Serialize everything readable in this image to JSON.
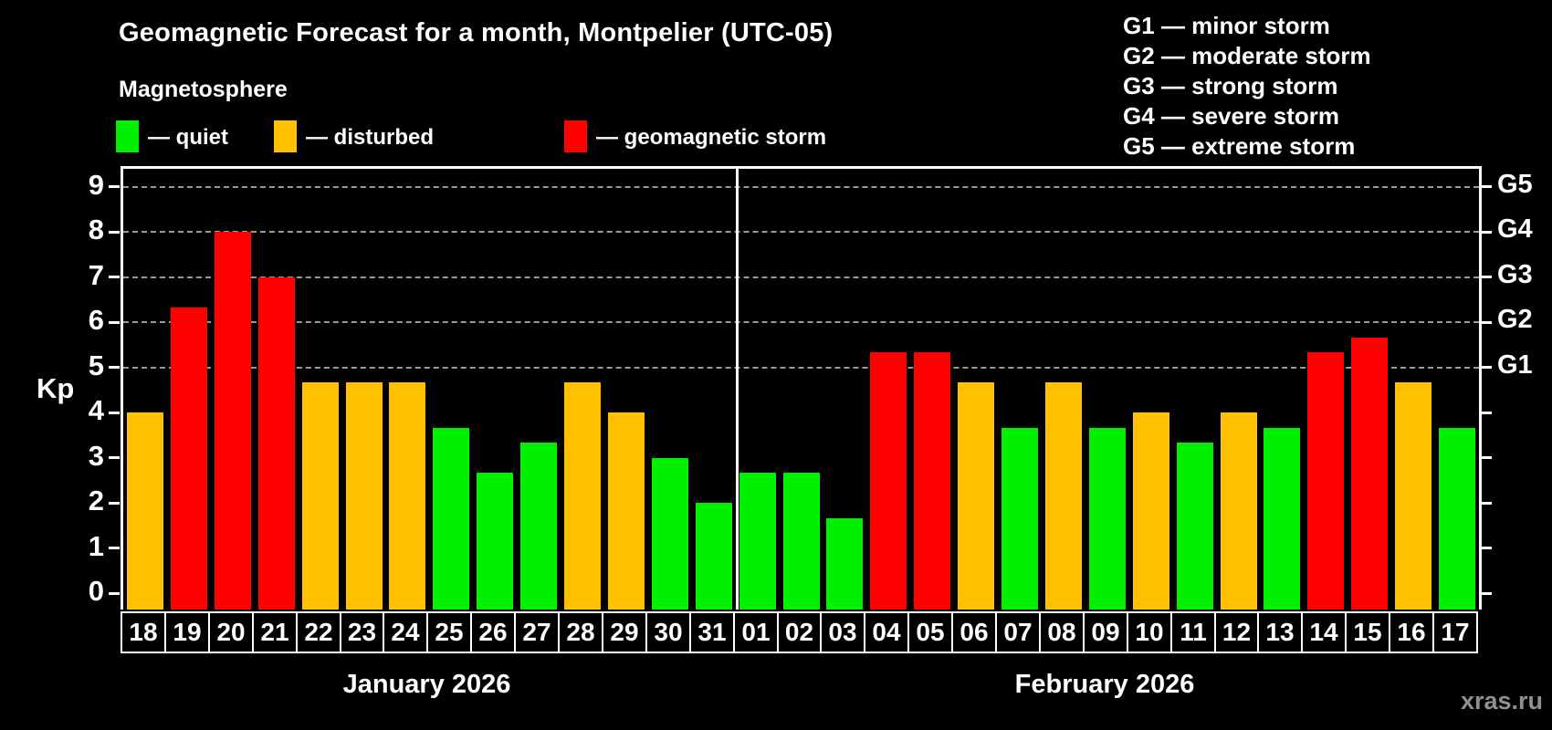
{
  "header": {
    "title": "Geomagnetic Forecast for a month, Montpelier (UTC-05)",
    "subtitle": "Magnetosphere"
  },
  "legend": [
    {
      "label": "— quiet",
      "level": "quiet"
    },
    {
      "label": "— disturbed",
      "level": "disturbed"
    },
    {
      "label": "— geomagnetic storm",
      "level": "storm"
    }
  ],
  "g_legend": [
    "G1 — minor storm",
    "G2 — moderate storm",
    "G3 — strong storm",
    "G4 — severe storm",
    "G5 — extreme storm"
  ],
  "colors": {
    "quiet": "#00F000",
    "disturbed": "#FFC000",
    "storm": "#FF0000",
    "grid": "#9A9A9A",
    "frame": "#FFFFFF",
    "watermark": "#909090"
  },
  "axes": {
    "y_label": "Kp",
    "y_ticks": [
      0,
      1,
      2,
      3,
      4,
      5,
      6,
      7,
      8,
      9
    ],
    "grid_kp": [
      5,
      6,
      7,
      8,
      9
    ],
    "right_labels": [
      {
        "kp": 5,
        "text": "G1"
      },
      {
        "kp": 6,
        "text": "G2"
      },
      {
        "kp": 7,
        "text": "G3"
      },
      {
        "kp": 8,
        "text": "G4"
      },
      {
        "kp": 9,
        "text": "G5"
      }
    ]
  },
  "months": [
    {
      "label": "January 2026",
      "days": 14
    },
    {
      "label": "February 2026",
      "days": 17
    }
  ],
  "chart_data": {
    "type": "bar",
    "title": "Geomagnetic Forecast for a month, Montpelier (UTC-05)",
    "xlabel": "",
    "ylabel": "Kp",
    "ylim": [
      0,
      9
    ],
    "grid": "horizontal dashed lines at Kp 5,6,7,8,9 (G1–G5 levels)",
    "legend_position": "top-left",
    "x": [
      "18",
      "19",
      "20",
      "21",
      "22",
      "23",
      "24",
      "25",
      "26",
      "27",
      "28",
      "29",
      "30",
      "31",
      "01",
      "02",
      "03",
      "04",
      "05",
      "06",
      "07",
      "08",
      "09",
      "10",
      "11",
      "12",
      "13",
      "14",
      "15",
      "16",
      "17"
    ],
    "series": [
      {
        "name": "Kp forecast",
        "values": [
          4.0,
          6.33,
          8.0,
          7.0,
          4.67,
          4.67,
          4.67,
          3.67,
          2.67,
          3.33,
          4.67,
          4.0,
          3.0,
          2.0,
          2.67,
          2.67,
          1.67,
          5.33,
          5.33,
          4.67,
          3.67,
          4.67,
          3.67,
          4.0,
          3.33,
          4.0,
          3.67,
          5.33,
          5.67,
          4.67,
          3.67
        ]
      }
    ],
    "point_levels": [
      "disturbed",
      "storm",
      "storm",
      "storm",
      "disturbed",
      "disturbed",
      "disturbed",
      "quiet",
      "quiet",
      "quiet",
      "disturbed",
      "disturbed",
      "quiet",
      "quiet",
      "quiet",
      "quiet",
      "quiet",
      "storm",
      "storm",
      "disturbed",
      "quiet",
      "disturbed",
      "quiet",
      "disturbed",
      "quiet",
      "disturbed",
      "quiet",
      "storm",
      "storm",
      "disturbed",
      "quiet"
    ]
  },
  "watermark": "xras.ru"
}
